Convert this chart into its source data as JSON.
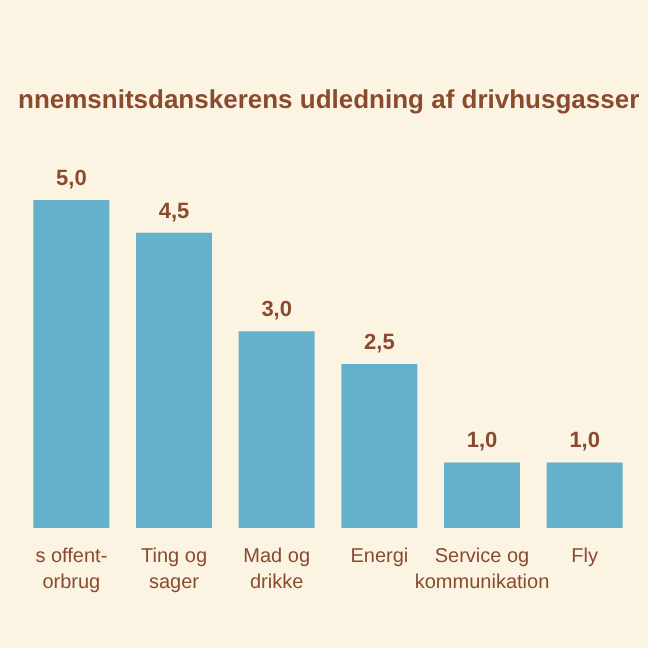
{
  "chart_data": {
    "type": "bar",
    "title": "nnemsnitsdanskerens udledning af drivhusgasser",
    "categories": [
      "s offent-\norbrug",
      "Ting og\nsager",
      "Mad og\ndrikke",
      "Energi",
      "Service og\nkommunikation",
      "Fly"
    ],
    "values": [
      5.0,
      4.5,
      3.0,
      2.5,
      1.0,
      1.0
    ],
    "value_labels": [
      "5,0",
      "4,5",
      "3,0",
      "2,5",
      "1,0",
      "1,0"
    ],
    "color": "#65b0cb"
  }
}
